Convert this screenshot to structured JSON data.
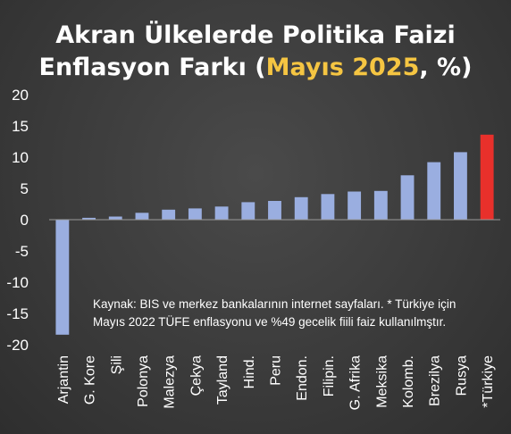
{
  "title": {
    "line1": "Akran Ülkelerde Politika Faizi",
    "line2_prefix": "Enflasyon Farkı (",
    "line2_highlight": "Mayıs 2025",
    "line2_suffix": ", %)"
  },
  "note": {
    "line1": "Kaynak: BIS ve merkez bankalarının internet sayfaları. * Türkiye için",
    "line2": "Mayıs 2022 TÜFE enflasyonu ve %49 gecelik fiili faiz kullanılmştır."
  },
  "colors": {
    "bar": "#9aaee0",
    "highlight_bar": "#e8302b",
    "text": "#ffffff",
    "title_highlight": "#f5c542"
  },
  "chart_data": {
    "type": "bar",
    "title": "Akran Ülkelerde Politika Faizi Enflasyon Farkı (Mayıs 2025, %)",
    "xlabel": "",
    "ylabel": "",
    "ylim": [
      -20,
      20
    ],
    "yticks": [
      "20",
      "15",
      "10",
      "5",
      "0",
      "-5",
      "-10",
      "-15",
      "-20"
    ],
    "grid": false,
    "categories": [
      "Arjantin",
      "G. Kore",
      "Şili",
      "Polonya",
      "Malezya",
      "Çekya",
      "Tayland",
      "Hind.",
      "Peru",
      "Endon.",
      "Filipin.",
      "G. Afrika",
      "Meksika",
      "Kolomb.",
      "Brezilya",
      "Rusya",
      "*Türkiye"
    ],
    "values": [
      -18.4,
      0.3,
      0.5,
      1.1,
      1.6,
      1.8,
      2.1,
      2.8,
      3.0,
      3.6,
      4.1,
      4.5,
      4.6,
      7.1,
      9.2,
      10.8,
      13.6
    ],
    "highlight": "*Türkiye"
  }
}
